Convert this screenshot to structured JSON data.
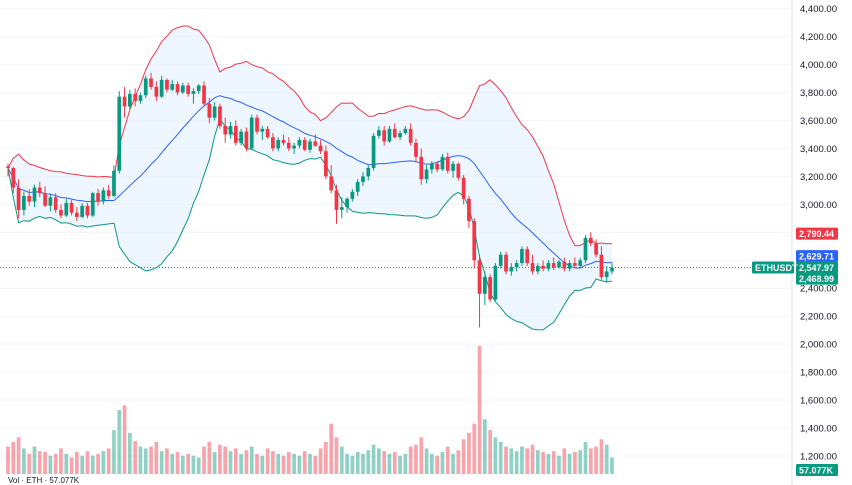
{
  "chart_data": {
    "type": "candlestick",
    "symbol": "ETHUSDT",
    "ylim": [
      1150,
      4440
    ],
    "y_ticks": [
      "4,400.00",
      "4,200.00",
      "4,000.00",
      "3,800.00",
      "3,600.00",
      "3,400.00",
      "3,200.00",
      "3,000.00",
      "2,800.00",
      "2,600.00",
      "2,400.00",
      "2,200.00",
      "2,000.00",
      "1,800.00",
      "1,600.00",
      "1,400.00",
      "1,200.00"
    ],
    "y_tick_values": [
      4400,
      4200,
      4000,
      3800,
      3600,
      3400,
      3200,
      3000,
      2800,
      2600,
      2400,
      2200,
      2000,
      1800,
      1600,
      1400,
      1200
    ],
    "price_tags": {
      "upper_band": {
        "label": "2,790.44",
        "value": 2790.44,
        "color": "#f23645"
      },
      "middle_band": {
        "label": "2,629.71",
        "value": 2629.71,
        "color": "#2962ff"
      },
      "symbol": {
        "label": "ETHUSDT",
        "color": "#089981"
      },
      "last_price": {
        "label": "2,547.97",
        "value": 2547.97,
        "color": "#089981"
      },
      "lower_band": {
        "label": "2,468.99",
        "value": 2468.99,
        "color": "#089981"
      },
      "volume": {
        "label": "57.077K",
        "value": 57077,
        "color": "#089981"
      }
    },
    "bottom_legend": "Vol · ETH · 57.077K",
    "colors": {
      "up": "#089981",
      "down": "#f23645",
      "band_fill": "#e3f0ff",
      "upper": "#f23645",
      "middle": "#2962ff",
      "lower": "#089981"
    },
    "candles": [
      [
        3270,
        3290,
        3200,
        3260,
        30
      ],
      [
        3260,
        3270,
        3080,
        3120,
        35
      ],
      [
        3120,
        3180,
        2900,
        2960,
        40
      ],
      [
        2960,
        3090,
        2920,
        3060,
        28
      ],
      [
        3060,
        3110,
        2990,
        3020,
        22
      ],
      [
        3020,
        3140,
        2980,
        3120,
        30
      ],
      [
        3120,
        3160,
        3050,
        3080,
        25
      ],
      [
        3080,
        3130,
        2980,
        2990,
        24
      ],
      [
        2990,
        3070,
        2950,
        3050,
        20
      ],
      [
        3050,
        3080,
        2940,
        2960,
        22
      ],
      [
        2960,
        3000,
        2900,
        2920,
        28
      ],
      [
        2920,
        3040,
        2910,
        3010,
        22
      ],
      [
        3010,
        3030,
        2920,
        2940,
        18
      ],
      [
        2940,
        2980,
        2880,
        2910,
        24
      ],
      [
        2910,
        3010,
        2900,
        2990,
        20
      ],
      [
        2990,
        3010,
        2900,
        2920,
        25
      ],
      [
        2920,
        3090,
        2910,
        3080,
        20
      ],
      [
        3080,
        3110,
        2990,
        3020,
        22
      ],
      [
        3020,
        3120,
        3000,
        3100,
        25
      ],
      [
        3100,
        3140,
        3040,
        3060,
        28
      ],
      [
        3060,
        3280,
        3050,
        3240,
        48
      ],
      [
        3240,
        3810,
        3220,
        3770,
        70
      ],
      [
        3770,
        3840,
        3620,
        3700,
        75
      ],
      [
        3700,
        3820,
        3680,
        3790,
        45
      ],
      [
        3790,
        3830,
        3700,
        3740,
        36
      ],
      [
        3740,
        3800,
        3720,
        3780,
        30
      ],
      [
        3780,
        3920,
        3760,
        3900,
        28
      ],
      [
        3900,
        3940,
        3820,
        3840,
        30
      ],
      [
        3840,
        3880,
        3740,
        3770,
        35
      ],
      [
        3770,
        3920,
        3760,
        3890,
        25
      ],
      [
        3890,
        3900,
        3800,
        3820,
        28
      ],
      [
        3820,
        3890,
        3810,
        3860,
        22
      ],
      [
        3860,
        3880,
        3780,
        3800,
        24
      ],
      [
        3800,
        3870,
        3790,
        3850,
        20
      ],
      [
        3850,
        3870,
        3770,
        3790,
        22
      ],
      [
        3790,
        3830,
        3720,
        3810,
        20
      ],
      [
        3810,
        3860,
        3790,
        3850,
        18
      ],
      [
        3850,
        3880,
        3700,
        3720,
        30
      ],
      [
        3720,
        3760,
        3580,
        3620,
        35
      ],
      [
        3620,
        3730,
        3600,
        3700,
        24
      ],
      [
        3700,
        3720,
        3540,
        3560,
        32
      ],
      [
        3560,
        3620,
        3440,
        3500,
        30
      ],
      [
        3500,
        3590,
        3470,
        3560,
        25
      ],
      [
        3560,
        3600,
        3420,
        3440,
        28
      ],
      [
        3440,
        3540,
        3420,
        3520,
        22
      ],
      [
        3520,
        3550,
        3380,
        3400,
        26
      ],
      [
        3400,
        3640,
        3390,
        3620,
        30
      ],
      [
        3620,
        3640,
        3500,
        3520,
        22
      ],
      [
        3520,
        3560,
        3460,
        3540,
        20
      ],
      [
        3540,
        3560,
        3470,
        3480,
        28
      ],
      [
        3480,
        3510,
        3380,
        3400,
        25
      ],
      [
        3400,
        3480,
        3380,
        3460,
        22
      ],
      [
        3460,
        3500,
        3420,
        3440,
        20
      ],
      [
        3440,
        3480,
        3380,
        3400,
        24
      ],
      [
        3400,
        3440,
        3360,
        3420,
        22
      ],
      [
        3420,
        3480,
        3400,
        3460,
        20
      ],
      [
        3460,
        3480,
        3380,
        3390,
        25
      ],
      [
        3390,
        3470,
        3370,
        3450,
        22
      ],
      [
        3450,
        3500,
        3410,
        3420,
        20
      ],
      [
        3420,
        3460,
        3360,
        3380,
        28
      ],
      [
        3380,
        3420,
        3180,
        3200,
        35
      ],
      [
        3200,
        3280,
        3080,
        3100,
        55
      ],
      [
        3100,
        3140,
        2860,
        2960,
        40
      ],
      [
        2960,
        3050,
        2900,
        2980,
        30
      ],
      [
        2980,
        3050,
        2940,
        3040,
        22
      ],
      [
        3040,
        3110,
        3020,
        3090,
        20
      ],
      [
        3090,
        3180,
        3060,
        3160,
        24
      ],
      [
        3160,
        3230,
        3130,
        3200,
        22
      ],
      [
        3200,
        3280,
        3170,
        3260,
        26
      ],
      [
        3260,
        3510,
        3240,
        3490,
        32
      ],
      [
        3490,
        3560,
        3470,
        3530,
        28
      ],
      [
        3530,
        3560,
        3420,
        3450,
        25
      ],
      [
        3450,
        3560,
        3440,
        3540,
        22
      ],
      [
        3540,
        3580,
        3470,
        3480,
        24
      ],
      [
        3480,
        3530,
        3460,
        3510,
        20
      ],
      [
        3510,
        3560,
        3500,
        3540,
        22
      ],
      [
        3540,
        3580,
        3420,
        3440,
        30
      ],
      [
        3440,
        3470,
        3300,
        3340,
        32
      ],
      [
        3340,
        3400,
        3140,
        3180,
        40
      ],
      [
        3180,
        3280,
        3150,
        3250,
        28
      ],
      [
        3250,
        3310,
        3220,
        3290,
        22
      ],
      [
        3290,
        3310,
        3230,
        3250,
        20
      ],
      [
        3250,
        3360,
        3240,
        3340,
        24
      ],
      [
        3340,
        3370,
        3220,
        3240,
        30
      ],
      [
        3240,
        3310,
        3190,
        3290,
        22
      ],
      [
        3290,
        3300,
        3170,
        3190,
        26
      ],
      [
        3190,
        3210,
        3000,
        3040,
        38
      ],
      [
        3040,
        3060,
        2830,
        2880,
        45
      ],
      [
        2880,
        2900,
        2540,
        2600,
        55
      ],
      [
        2600,
        2640,
        2120,
        2360,
        140
      ],
      [
        2360,
        2520,
        2280,
        2480,
        60
      ],
      [
        2480,
        2500,
        2300,
        2320,
        48
      ],
      [
        2320,
        2580,
        2310,
        2560,
        40
      ],
      [
        2560,
        2660,
        2540,
        2640,
        35
      ],
      [
        2640,
        2660,
        2500,
        2520,
        30
      ],
      [
        2520,
        2580,
        2490,
        2550,
        28
      ],
      [
        2550,
        2600,
        2520,
        2580,
        25
      ],
      [
        2580,
        2700,
        2560,
        2680,
        30
      ],
      [
        2680,
        2700,
        2560,
        2580,
        28
      ],
      [
        2580,
        2640,
        2500,
        2520,
        32
      ],
      [
        2520,
        2580,
        2500,
        2560,
        26
      ],
      [
        2560,
        2600,
        2520,
        2540,
        24
      ],
      [
        2540,
        2600,
        2520,
        2580,
        22
      ],
      [
        2580,
        2620,
        2530,
        2550,
        25
      ],
      [
        2550,
        2600,
        2540,
        2590,
        20
      ],
      [
        2590,
        2620,
        2520,
        2540,
        28
      ],
      [
        2540,
        2600,
        2520,
        2580,
        22
      ],
      [
        2580,
        2620,
        2540,
        2560,
        24
      ],
      [
        2560,
        2620,
        2550,
        2600,
        26
      ],
      [
        2600,
        2780,
        2580,
        2760,
        35
      ],
      [
        2760,
        2800,
        2700,
        2720,
        28
      ],
      [
        2720,
        2750,
        2620,
        2640,
        30
      ],
      [
        2640,
        2700,
        2460,
        2480,
        38
      ],
      [
        2480,
        2560,
        2440,
        2520,
        32
      ],
      [
        2520,
        2580,
        2500,
        2548,
        18
      ]
    ]
  }
}
